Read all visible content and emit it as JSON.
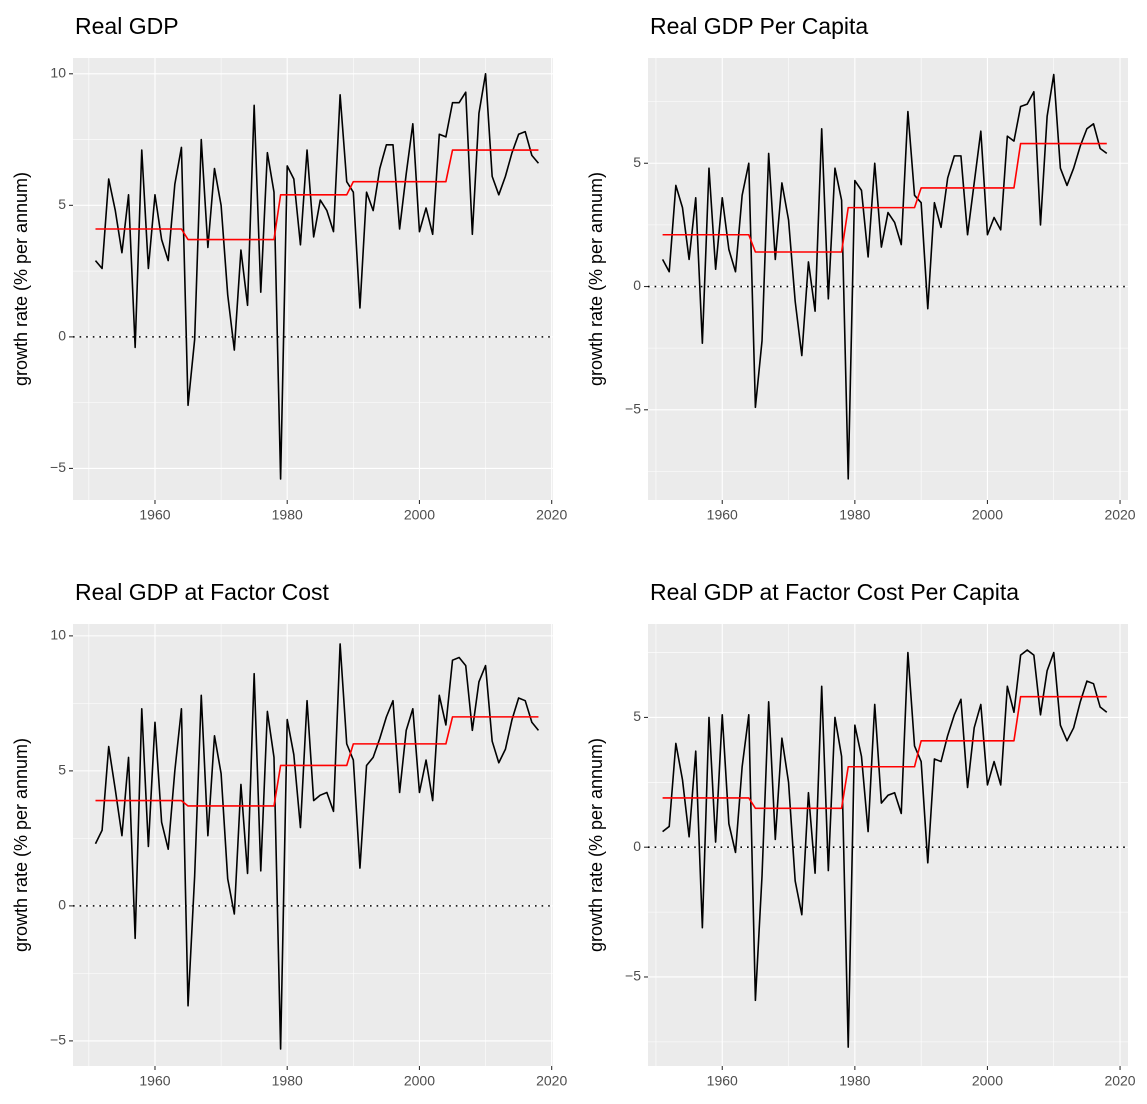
{
  "chart_data": [
    {
      "type": "line",
      "title": "Real GDP",
      "ylabel": "growth rate (% per annum)",
      "x": [
        1951,
        1952,
        1953,
        1954,
        1955,
        1956,
        1957,
        1958,
        1959,
        1960,
        1961,
        1962,
        1963,
        1964,
        1965,
        1966,
        1967,
        1968,
        1969,
        1970,
        1971,
        1972,
        1973,
        1974,
        1975,
        1976,
        1977,
        1978,
        1979,
        1980,
        1981,
        1982,
        1983,
        1984,
        1985,
        1986,
        1987,
        1988,
        1989,
        1990,
        1991,
        1992,
        1993,
        1994,
        1995,
        1996,
        1997,
        1998,
        1999,
        2000,
        2001,
        2002,
        2003,
        2004,
        2005,
        2006,
        2007,
        2008,
        2009,
        2010,
        2011,
        2012,
        2013,
        2014,
        2015,
        2016,
        2017,
        2018
      ],
      "series": [
        {
          "color": "#000000",
          "values": [
            2.9,
            2.6,
            6.0,
            4.8,
            3.2,
            5.4,
            -0.4,
            7.1,
            2.6,
            5.4,
            3.7,
            2.9,
            5.8,
            7.2,
            -2.6,
            -0.1,
            7.5,
            3.4,
            6.4,
            5.0,
            1.6,
            -0.5,
            3.3,
            1.2,
            8.8,
            1.7,
            7.0,
            5.5,
            -5.4,
            6.5,
            6.0,
            3.5,
            7.1,
            3.8,
            5.2,
            4.8,
            4.0,
            9.2,
            5.9,
            5.5,
            1.1,
            5.5,
            4.8,
            6.4,
            7.3,
            7.3,
            4.1,
            6.2,
            8.1,
            4.0,
            4.9,
            3.9,
            7.7,
            7.6,
            8.9,
            8.9,
            9.3,
            3.9,
            8.5,
            10.0,
            6.1,
            5.4,
            6.1,
            7.0,
            7.7,
            7.8,
            6.9,
            6.6
          ]
        },
        {
          "color": "#ff0000",
          "values": [
            4.1,
            4.1,
            4.1,
            4.1,
            4.1,
            4.1,
            4.1,
            4.1,
            4.1,
            4.1,
            4.1,
            4.1,
            4.1,
            4.1,
            3.7,
            3.7,
            3.7,
            3.7,
            3.7,
            3.7,
            3.7,
            3.7,
            3.7,
            3.7,
            3.7,
            3.7,
            3.7,
            3.7,
            5.4,
            5.4,
            5.4,
            5.4,
            5.4,
            5.4,
            5.4,
            5.4,
            5.4,
            5.4,
            5.4,
            5.9,
            5.9,
            5.9,
            5.9,
            5.9,
            5.9,
            5.9,
            5.9,
            5.9,
            5.9,
            5.9,
            5.9,
            5.9,
            5.9,
            5.9,
            7.1,
            7.1,
            7.1,
            7.1,
            7.1,
            7.1,
            7.1,
            7.1,
            7.1,
            7.1,
            7.1,
            7.1,
            7.1,
            7.1
          ]
        }
      ],
      "xlim": [
        1947.6,
        2020.2
      ],
      "xticks": [
        1960,
        1980,
        2000,
        2020
      ],
      "ylim": [
        -6.2,
        10.6
      ],
      "yticks": [
        {
          "value": -5,
          "label": "−5"
        },
        0,
        5,
        10
      ],
      "hline": 0,
      "grid": true
    },
    {
      "type": "line",
      "title": "Real GDP Per Capita",
      "ylabel": "growth rate (% per annum)",
      "x": [
        1951,
        1952,
        1953,
        1954,
        1955,
        1956,
        1957,
        1958,
        1959,
        1960,
        1961,
        1962,
        1963,
        1964,
        1965,
        1966,
        1967,
        1968,
        1969,
        1970,
        1971,
        1972,
        1973,
        1974,
        1975,
        1976,
        1977,
        1978,
        1979,
        1980,
        1981,
        1982,
        1983,
        1984,
        1985,
        1986,
        1987,
        1988,
        1989,
        1990,
        1991,
        1992,
        1993,
        1994,
        1995,
        1996,
        1997,
        1998,
        1999,
        2000,
        2001,
        2002,
        2003,
        2004,
        2005,
        2006,
        2007,
        2008,
        2009,
        2010,
        2011,
        2012,
        2013,
        2014,
        2015,
        2016,
        2017,
        2018
      ],
      "series": [
        {
          "color": "#000000",
          "values": [
            1.1,
            0.6,
            4.1,
            3.2,
            1.1,
            3.6,
            -2.3,
            4.8,
            0.7,
            3.6,
            1.5,
            0.6,
            3.7,
            5.0,
            -4.9,
            -2.2,
            5.4,
            1.1,
            4.2,
            2.7,
            -0.6,
            -2.8,
            1.0,
            -1.0,
            6.4,
            -0.5,
            4.8,
            3.5,
            -7.8,
            4.3,
            3.9,
            1.2,
            5.0,
            1.6,
            3.0,
            2.6,
            1.7,
            7.1,
            3.7,
            3.4,
            -0.9,
            3.4,
            2.4,
            4.4,
            5.3,
            5.3,
            2.1,
            4.2,
            6.3,
            2.1,
            2.8,
            2.3,
            6.1,
            5.9,
            7.3,
            7.4,
            7.9,
            2.5,
            6.9,
            8.6,
            4.8,
            4.1,
            4.8,
            5.7,
            6.4,
            6.6,
            5.6,
            5.4
          ]
        },
        {
          "color": "#ff0000",
          "values": [
            2.1,
            2.1,
            2.1,
            2.1,
            2.1,
            2.1,
            2.1,
            2.1,
            2.1,
            2.1,
            2.1,
            2.1,
            2.1,
            2.1,
            1.4,
            1.4,
            1.4,
            1.4,
            1.4,
            1.4,
            1.4,
            1.4,
            1.4,
            1.4,
            1.4,
            1.4,
            1.4,
            1.4,
            3.2,
            3.2,
            3.2,
            3.2,
            3.2,
            3.2,
            3.2,
            3.2,
            3.2,
            3.2,
            3.2,
            4.0,
            4.0,
            4.0,
            4.0,
            4.0,
            4.0,
            4.0,
            4.0,
            4.0,
            4.0,
            4.0,
            4.0,
            4.0,
            4.0,
            4.0,
            5.8,
            5.8,
            5.8,
            5.8,
            5.8,
            5.8,
            5.8,
            5.8,
            5.8,
            5.8,
            5.8,
            5.8,
            5.8,
            5.8
          ]
        }
      ],
      "xlim": [
        1948.8,
        2021.2
      ],
      "xticks": [
        1960,
        1980,
        2000,
        2020
      ],
      "ylim": [
        -8.66,
        9.27
      ],
      "yticks": [
        {
          "value": -5,
          "label": "−5"
        },
        0,
        5
      ],
      "hline": 0,
      "grid": true
    },
    {
      "type": "line",
      "title": "Real GDP at Factor Cost",
      "ylabel": "growth rate (% per annum)",
      "x": [
        1951,
        1952,
        1953,
        1954,
        1955,
        1956,
        1957,
        1958,
        1959,
        1960,
        1961,
        1962,
        1963,
        1964,
        1965,
        1966,
        1967,
        1968,
        1969,
        1970,
        1971,
        1972,
        1973,
        1974,
        1975,
        1976,
        1977,
        1978,
        1979,
        1980,
        1981,
        1982,
        1983,
        1984,
        1985,
        1986,
        1987,
        1988,
        1989,
        1990,
        1991,
        1992,
        1993,
        1994,
        1995,
        1996,
        1997,
        1998,
        1999,
        2000,
        2001,
        2002,
        2003,
        2004,
        2005,
        2006,
        2007,
        2008,
        2009,
        2010,
        2011,
        2012,
        2013,
        2014,
        2015,
        2016,
        2017,
        2018
      ],
      "series": [
        {
          "color": "#000000",
          "values": [
            2.3,
            2.8,
            5.9,
            4.3,
            2.6,
            5.5,
            -1.2,
            7.3,
            2.2,
            6.8,
            3.1,
            2.1,
            5.0,
            7.3,
            -3.7,
            1.1,
            7.8,
            2.6,
            6.3,
            4.9,
            1.0,
            -0.3,
            4.5,
            1.2,
            8.6,
            1.3,
            7.2,
            5.5,
            -5.3,
            6.9,
            5.6,
            2.9,
            7.6,
            3.9,
            4.1,
            4.2,
            3.5,
            9.7,
            6.0,
            5.4,
            1.4,
            5.2,
            5.5,
            6.2,
            7.0,
            7.6,
            4.2,
            6.5,
            7.3,
            4.2,
            5.4,
            3.9,
            7.8,
            6.7,
            9.1,
            9.2,
            8.9,
            6.5,
            8.3,
            8.9,
            6.1,
            5.3,
            5.8,
            6.9,
            7.7,
            7.6,
            6.8,
            6.5
          ]
        },
        {
          "color": "#ff0000",
          "values": [
            3.9,
            3.9,
            3.9,
            3.9,
            3.9,
            3.9,
            3.9,
            3.9,
            3.9,
            3.9,
            3.9,
            3.9,
            3.9,
            3.9,
            3.7,
            3.7,
            3.7,
            3.7,
            3.7,
            3.7,
            3.7,
            3.7,
            3.7,
            3.7,
            3.7,
            3.7,
            3.7,
            3.7,
            5.2,
            5.2,
            5.2,
            5.2,
            5.2,
            5.2,
            5.2,
            5.2,
            5.2,
            5.2,
            5.2,
            6.0,
            6.0,
            6.0,
            6.0,
            6.0,
            6.0,
            6.0,
            6.0,
            6.0,
            6.0,
            6.0,
            6.0,
            6.0,
            6.0,
            6.0,
            7.0,
            7.0,
            7.0,
            7.0,
            7.0,
            7.0,
            7.0,
            7.0,
            7.0,
            7.0,
            7.0,
            7.0,
            7.0,
            7.0
          ]
        }
      ],
      "xlim": [
        1947.6,
        2020.2
      ],
      "xticks": [
        1960,
        1980,
        2000,
        2020
      ],
      "ylim": [
        -5.93,
        10.44
      ],
      "yticks": [
        {
          "value": -5,
          "label": "−5"
        },
        0,
        5,
        10
      ],
      "hline": 0,
      "grid": true
    },
    {
      "type": "line",
      "title": "Real GDP at Factor Cost Per Capita",
      "ylabel": "growth rate (% per annum)",
      "x": [
        1951,
        1952,
        1953,
        1954,
        1955,
        1956,
        1957,
        1958,
        1959,
        1960,
        1961,
        1962,
        1963,
        1964,
        1965,
        1966,
        1967,
        1968,
        1969,
        1970,
        1971,
        1972,
        1973,
        1974,
        1975,
        1976,
        1977,
        1978,
        1979,
        1980,
        1981,
        1982,
        1983,
        1984,
        1985,
        1986,
        1987,
        1988,
        1989,
        1990,
        1991,
        1992,
        1993,
        1994,
        1995,
        1996,
        1997,
        1998,
        1999,
        2000,
        2001,
        2002,
        2003,
        2004,
        2005,
        2006,
        2007,
        2008,
        2009,
        2010,
        2011,
        2012,
        2013,
        2014,
        2015,
        2016,
        2017,
        2018
      ],
      "series": [
        {
          "color": "#000000",
          "values": [
            0.6,
            0.8,
            4.0,
            2.6,
            0.4,
            3.7,
            -3.1,
            5.0,
            0.2,
            5.1,
            0.9,
            -0.2,
            3.1,
            5.1,
            -5.9,
            -1.1,
            5.6,
            0.3,
            4.2,
            2.5,
            -1.3,
            -2.6,
            2.1,
            -1.0,
            6.2,
            -0.9,
            5.0,
            3.5,
            -7.7,
            4.7,
            3.5,
            0.6,
            5.5,
            1.7,
            2.0,
            2.1,
            1.3,
            7.5,
            3.9,
            3.3,
            -0.6,
            3.4,
            3.3,
            4.3,
            5.1,
            5.7,
            2.3,
            4.6,
            5.5,
            2.4,
            3.3,
            2.4,
            6.2,
            5.2,
            7.4,
            7.6,
            7.4,
            5.1,
            6.8,
            7.5,
            4.7,
            4.1,
            4.6,
            5.6,
            6.4,
            6.3,
            5.4,
            5.2
          ]
        },
        {
          "color": "#ff0000",
          "values": [
            1.9,
            1.9,
            1.9,
            1.9,
            1.9,
            1.9,
            1.9,
            1.9,
            1.9,
            1.9,
            1.9,
            1.9,
            1.9,
            1.9,
            1.5,
            1.5,
            1.5,
            1.5,
            1.5,
            1.5,
            1.5,
            1.5,
            1.5,
            1.5,
            1.5,
            1.5,
            1.5,
            1.5,
            3.1,
            3.1,
            3.1,
            3.1,
            3.1,
            3.1,
            3.1,
            3.1,
            3.1,
            3.1,
            3.1,
            4.1,
            4.1,
            4.1,
            4.1,
            4.1,
            4.1,
            4.1,
            4.1,
            4.1,
            4.1,
            4.1,
            4.1,
            4.1,
            4.1,
            4.1,
            5.8,
            5.8,
            5.8,
            5.8,
            5.8,
            5.8,
            5.8,
            5.8,
            5.8,
            5.8,
            5.8,
            5.8,
            5.8,
            5.8
          ]
        }
      ],
      "xlim": [
        1948.8,
        2021.2
      ],
      "xticks": [
        1960,
        1980,
        2000,
        2020
      ],
      "ylim": [
        -8.43,
        8.6
      ],
      "yticks": [
        {
          "value": -5,
          "label": "−5"
        },
        0,
        5
      ],
      "hline": 0,
      "grid": true
    }
  ]
}
